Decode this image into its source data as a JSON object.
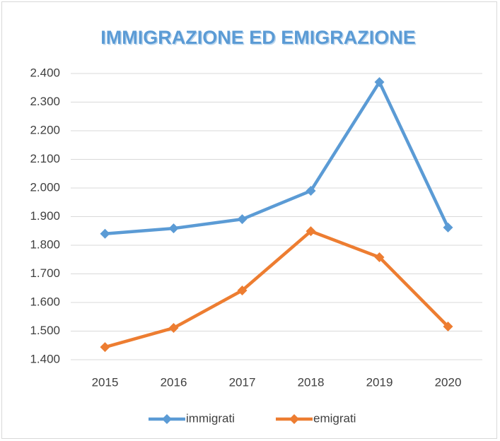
{
  "chart_data": {
    "type": "line",
    "title": "IMMIGRAZIONE ED EMIGRAZIONE",
    "categories": [
      "2015",
      "2016",
      "2017",
      "2018",
      "2019",
      "2020"
    ],
    "series": [
      {
        "name": "immigrati",
        "color": "#5b9bd5",
        "values": [
          1840,
          1859,
          1891,
          1990,
          2370,
          1862
        ]
      },
      {
        "name": "emigrati",
        "color": "#ed7d31",
        "values": [
          1444,
          1511,
          1642,
          1849,
          1758,
          1516
        ]
      }
    ],
    "ylim": [
      1400,
      2400
    ],
    "yticks": [
      {
        "value": 1400,
        "label": "1.400"
      },
      {
        "value": 1500,
        "label": "1.500"
      },
      {
        "value": 1600,
        "label": "1.600"
      },
      {
        "value": 1700,
        "label": "1.700"
      },
      {
        "value": 1800,
        "label": "1.800"
      },
      {
        "value": 1900,
        "label": "1.900"
      },
      {
        "value": 2000,
        "label": "2.000"
      },
      {
        "value": 2100,
        "label": "2.100"
      },
      {
        "value": 2200,
        "label": "2.200"
      },
      {
        "value": 2300,
        "label": "2.300"
      },
      {
        "value": 2400,
        "label": "2.400"
      }
    ],
    "grid": true,
    "legend": "bottom"
  }
}
